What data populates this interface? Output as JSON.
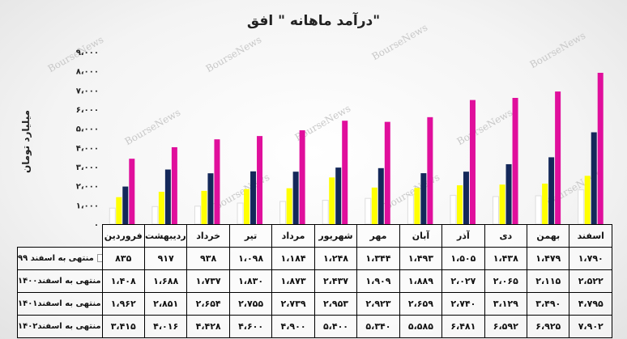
{
  "chart_data": {
    "type": "bar",
    "title": "درآمد ماهانه \" افق\"",
    "ylabel": "میلیارد تومان",
    "ylim": [
      0,
      9000
    ],
    "yticks": [
      "۰",
      "۱،۰۰۰",
      "۲،۰۰۰",
      "۳،۰۰۰",
      "۴،۰۰۰",
      "۵،۰۰۰",
      "۶،۰۰۰",
      "۷،۰۰۰",
      "۸،۰۰۰",
      "۹،۰۰۰"
    ],
    "categories": [
      "فروردین",
      "اردیبهشت",
      "خرداد",
      "تیر",
      "مرداد",
      "شهریور",
      "مهر",
      "آبان",
      "آذر",
      "دی",
      "بهمن",
      "اسفند"
    ],
    "series": [
      {
        "name": "منتهی به اسفند ۹۹",
        "color": "#ffffff",
        "values": [
          835,
          917,
          938,
          1098,
          1184,
          1248,
          1344,
          1493,
          1505,
          1438,
          1479,
          1790
        ],
        "labels": [
          "۸۳۵",
          "۹۱۷",
          "۹۳۸",
          "۱،۰۹۸",
          "۱،۱۸۴",
          "۱،۲۴۸",
          "۱،۳۴۴",
          "۱،۴۹۳",
          "۱،۵۰۵",
          "۱،۴۳۸",
          "۱،۴۷۹",
          "۱،۷۹۰"
        ]
      },
      {
        "name": "منتهی به اسفند۱۴۰۰",
        "color": "#ffff00",
        "values": [
          1408,
          1688,
          1737,
          1830,
          1873,
          2437,
          1909,
          1889,
          2027,
          2065,
          2115,
          2522
        ],
        "labels": [
          "۱،۴۰۸",
          "۱،۶۸۸",
          "۱،۷۳۷",
          "۱،۸۳۰",
          "۱،۸۷۳",
          "۲،۴۳۷",
          "۱،۹۰۹",
          "۱،۸۸۹",
          "۲،۰۲۷",
          "۲،۰۶۵",
          "۲،۱۱۵",
          "۲،۵۲۲"
        ]
      },
      {
        "name": "منتهی به اسفند۱۴۰۱",
        "color": "#14285a",
        "values": [
          1962,
          2851,
          2654,
          2755,
          2739,
          2953,
          2923,
          2659,
          2740,
          3129,
          3490,
          4795
        ],
        "labels": [
          "۱،۹۶۲",
          "۲،۸۵۱",
          "۲،۶۵۴",
          "۲،۷۵۵",
          "۲،۷۳۹",
          "۲،۹۵۳",
          "۲،۹۲۳",
          "۲،۶۵۹",
          "۲،۷۴۰",
          "۳،۱۲۹",
          "۳،۴۹۰",
          "۴،۷۹۵"
        ]
      },
      {
        "name": "منتهی به اسفند۱۴۰۲",
        "color": "#e00f9c",
        "values": [
          3415,
          4016,
          4428,
          4600,
          4900,
          5400,
          5340,
          5585,
          6481,
          6592,
          6925,
          7902
        ],
        "labels": [
          "۳،۴۱۵",
          "۴،۰۱۶",
          "۴،۴۲۸",
          "۴،۶۰۰",
          "۴،۹۰۰",
          "۵،۴۰۰",
          "۵،۳۴۰",
          "۵،۵۸۵",
          "۶،۴۸۱",
          "۶،۵۹۲",
          "۶،۹۲۵",
          "۷،۹۰۲"
        ]
      }
    ]
  },
  "watermark": "BourseNews"
}
